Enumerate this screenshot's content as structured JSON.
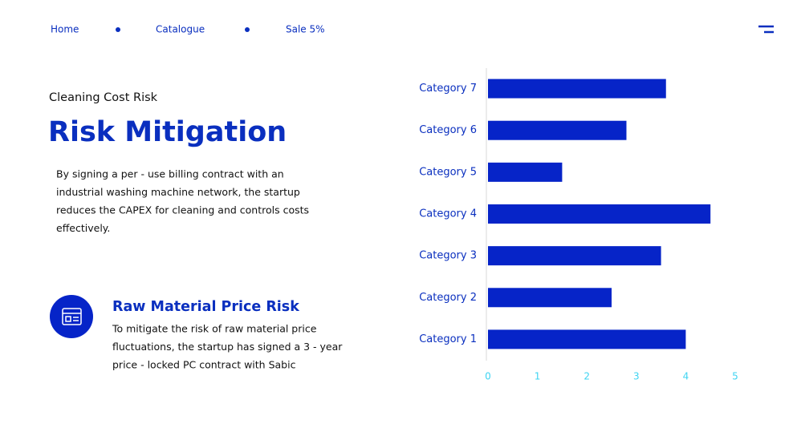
{
  "nav": {
    "items": [
      "Home",
      "Catalogue",
      "Sale 5%"
    ]
  },
  "section": {
    "eyebrow": "Cleaning Cost Risk",
    "title": "Risk Mitigation",
    "body": [
      "By signing a per - use billing contract with an",
      "industrial washing machine network, the startup",
      "reduces the CAPEX for cleaning and controls costs",
      "effectively."
    ]
  },
  "feature": {
    "title": "Raw Material Price Risk",
    "body": [
      "To mitigate the risk of raw material price",
      "fluctuations, the startup has signed a 3 - year",
      "price - locked PC contract with Sabic"
    ]
  },
  "chart_data": {
    "type": "bar",
    "orientation": "horizontal",
    "categories": [
      "Category 1",
      "Category 2",
      "Category 3",
      "Category 4",
      "Category 5",
      "Category 6",
      "Category 7"
    ],
    "values": [
      4.0,
      2.5,
      3.5,
      4.5,
      1.5,
      2.8,
      3.6
    ],
    "color": "#0624c8",
    "xlim": [
      0,
      5
    ],
    "xticks": [
      0,
      1,
      2,
      3,
      4,
      5
    ],
    "grid": false
  }
}
